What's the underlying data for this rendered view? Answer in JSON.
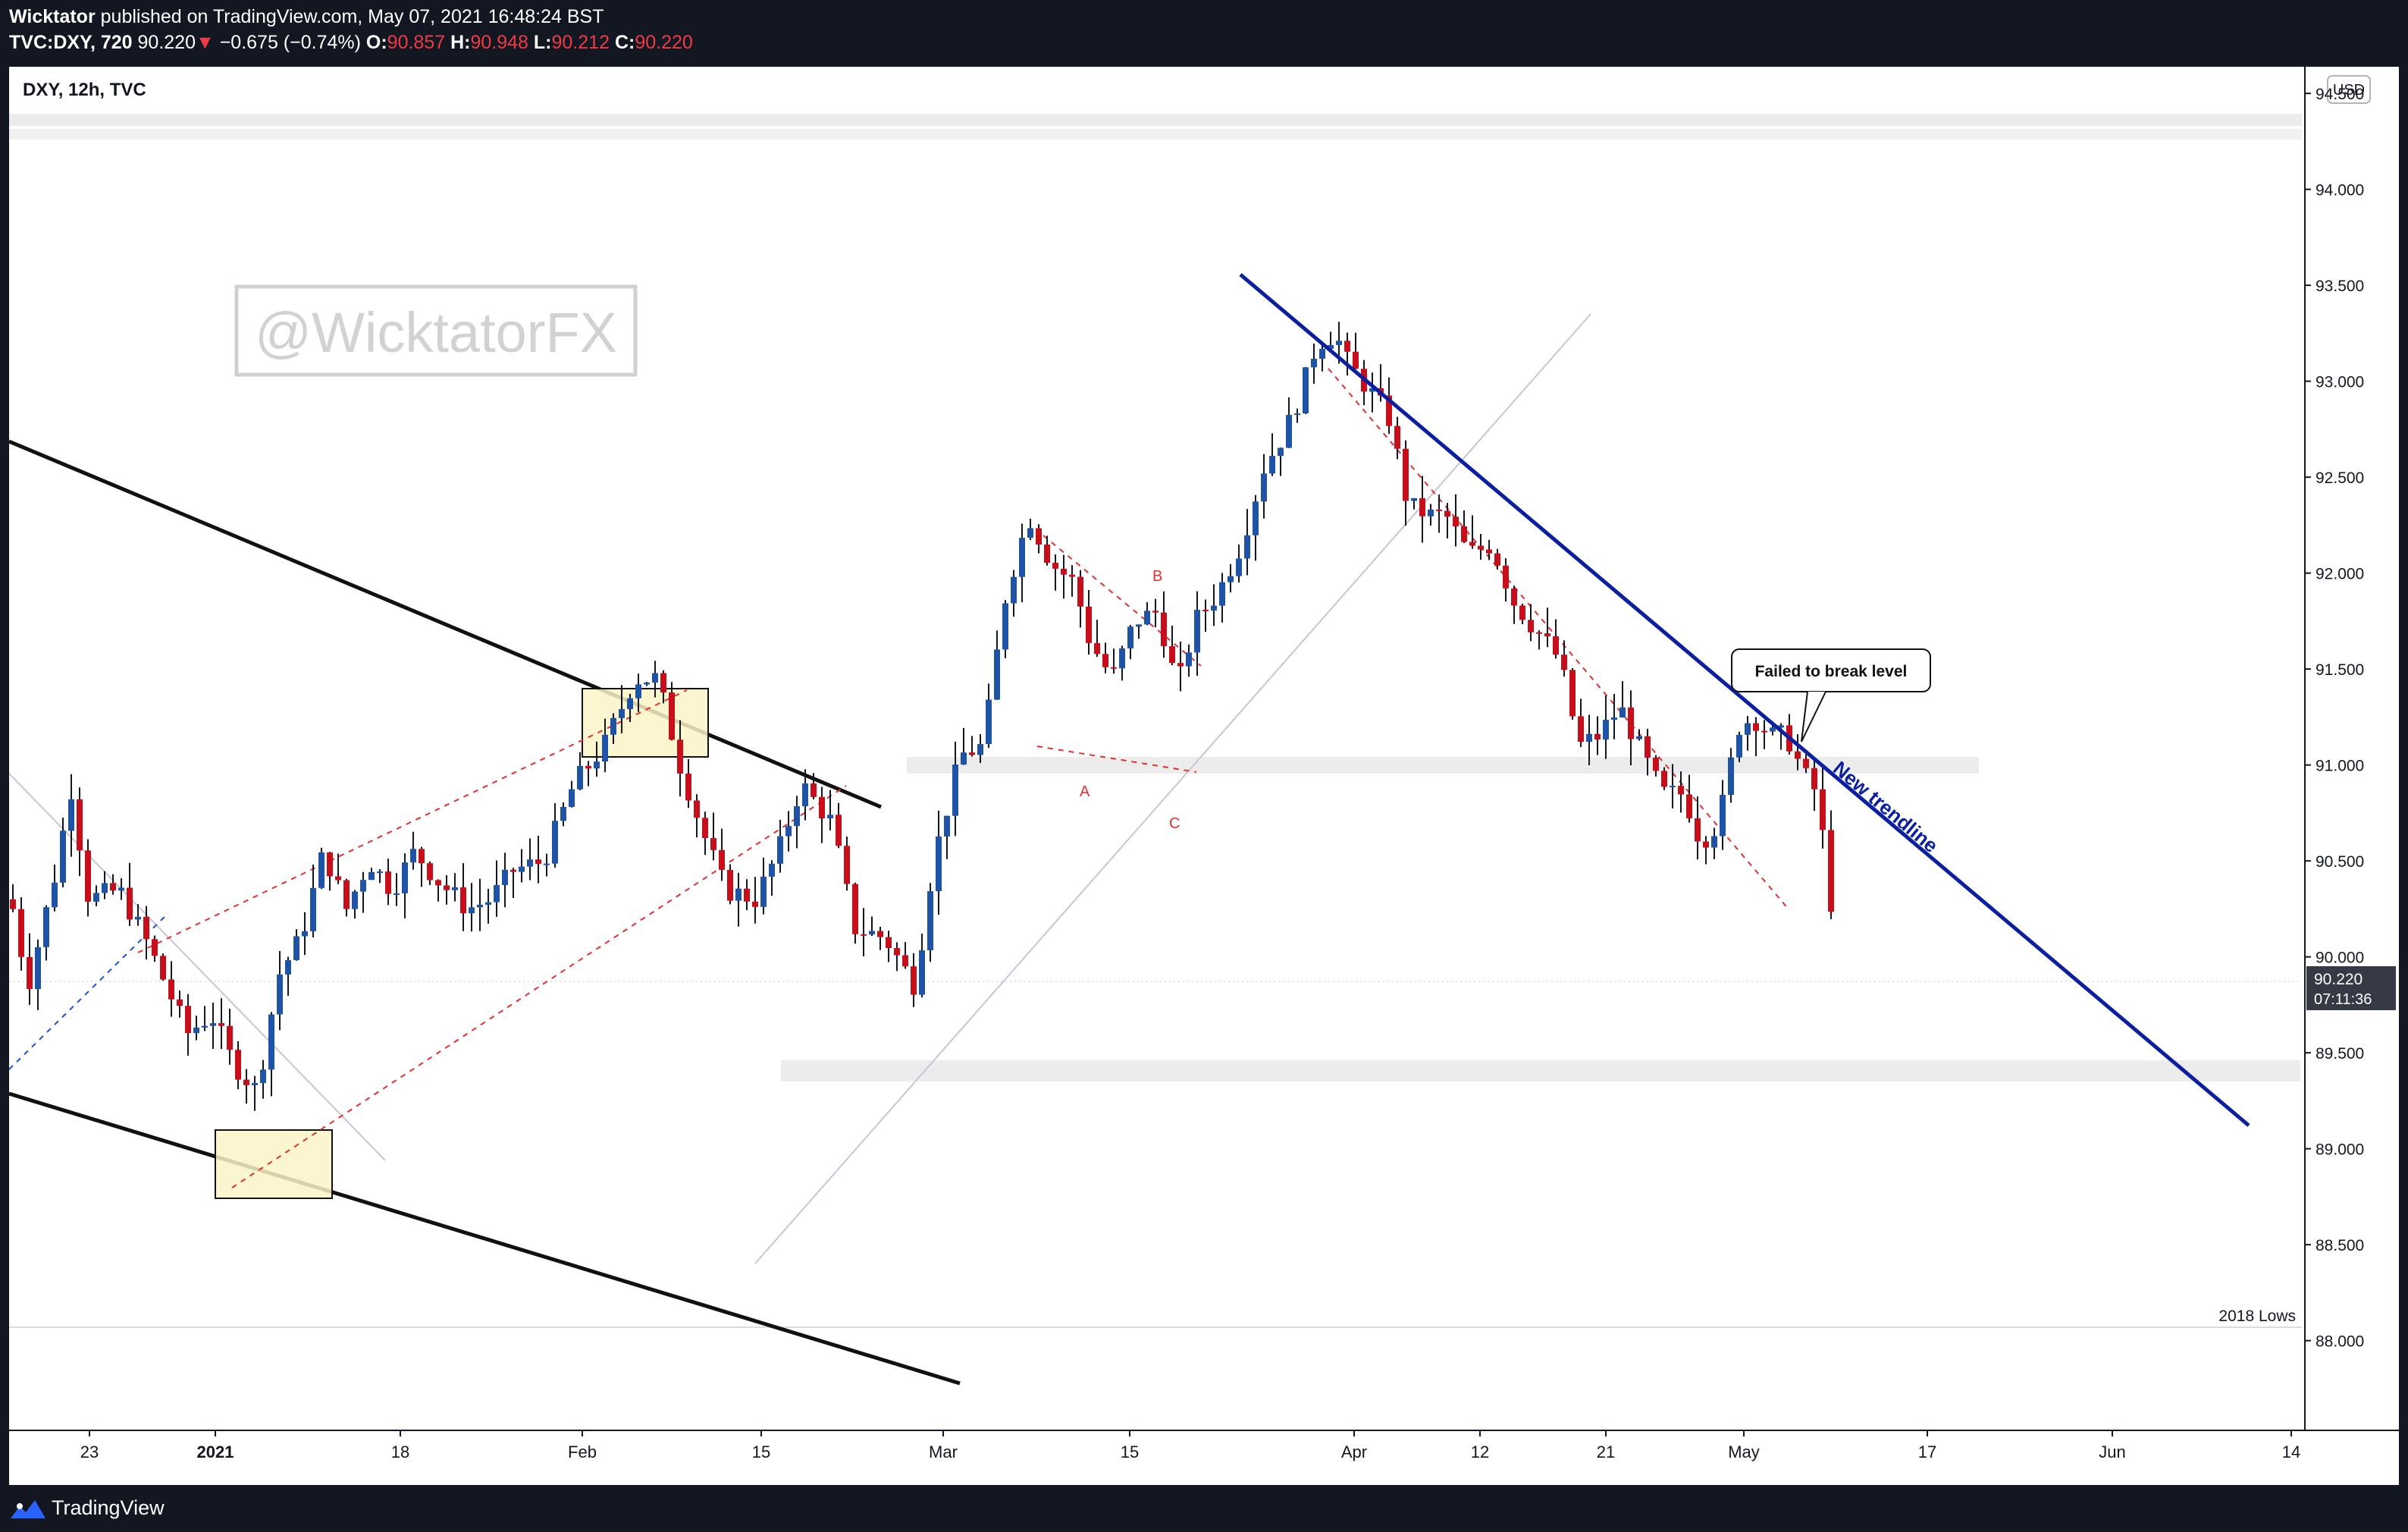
{
  "header": {
    "author": "Wicktator",
    "published_text": "published on TradingView.com, May 07, 2021 16:48:24 BST",
    "symbol_line": {
      "symbol": "TVC:DXY, 720",
      "last": "90.220",
      "change": "−0.675 (−0.74%)",
      "open_label": "O:",
      "open": "90.857",
      "high_label": "H:",
      "high": "90.948",
      "low_label": "L:",
      "low": "90.212",
      "close_label": "C:",
      "close": "90.220",
      "down_arrow": "▼"
    }
  },
  "chart_header": {
    "title": "DXY, 12h, TVC",
    "currency_badge": "USD"
  },
  "watermark": "@WicktatorFX",
  "price_badge": {
    "price": "90.220",
    "countdown": "07:11:36",
    "value": 90.22
  },
  "annotations": {
    "callout": "Failed to break level",
    "trendline_label": "New trendline",
    "label_a": "A",
    "label_b": "B",
    "label_c": "C",
    "lows_label": "2018 Lows"
  },
  "footer": {
    "brand": "TradingView"
  },
  "colors": {
    "up": "#1e53a5",
    "down": "#c70f1b",
    "trendline": "#0b1fa0",
    "dashed": "#e03030",
    "zone": "#ececec",
    "box_fill": "#faf3c8",
    "background_dark": "#131722"
  },
  "chart_data": {
    "type": "candlestick",
    "symbol": "DXY",
    "timeframe": "12h",
    "ylim": [
      87.9,
      94.75
    ],
    "y_ticks": [
      "94.500",
      "94.000",
      "93.500",
      "93.000",
      "92.500",
      "92.000",
      "91.500",
      "91.000",
      "90.500",
      "90.000",
      "89.500",
      "89.000",
      "88.500",
      "88.000"
    ],
    "x_ticks": [
      "23",
      "2021",
      "18",
      "Feb",
      "15",
      "Mar",
      "15",
      "Apr",
      "12",
      "21",
      "May",
      "17",
      "Jun",
      "14"
    ],
    "horizontal_levels": [
      {
        "price": 91.35,
        "kind": "resistance zone"
      },
      {
        "price": 89.78,
        "kind": "support zone"
      },
      {
        "price": 88.45,
        "kind": "2018 Lows"
      }
    ],
    "notes": "Descending channel, ascending red dashed channel, ABC correction near 91.3-92.5, peak near 93.45 in late March, new descending trendline rejected near 91.4 in early May, last close 90.220."
  }
}
